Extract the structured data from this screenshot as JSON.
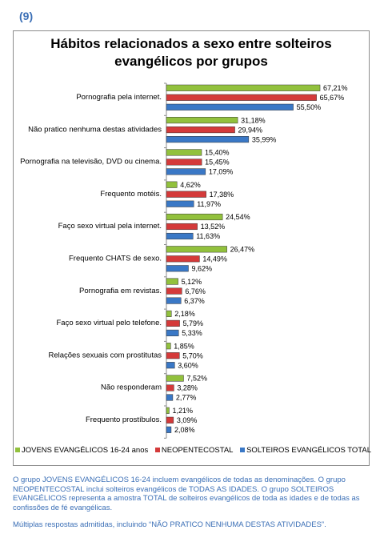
{
  "figure_number": "(9)",
  "legend": [
    {
      "label": "JOVENS EVANGÉLICOS 16-24 anos",
      "color": "#92c13d"
    },
    {
      "label": "NEOPENTECOSTAL",
      "color": "#d43a3a"
    },
    {
      "label": "SOLTEIROS EVANGÉLICOS TOTAL",
      "color": "#3a78c6"
    }
  ],
  "caption": {
    "paragraph1": "O grupo JOVENS EVANGÉLICOS 16-24 incluem evangélicos de todas as denominações. O grupo NEOPENTECOSTAL inclui solteiros evangélicos de TODAS AS IDADES. O grupo SOLTEIROS EVANGÉLICOS representa a amostra TOTAL de solteiros evangélicos de toda as idades e de todas as confissões de fé evangélicas.",
    "paragraph2": "Múltiplas respostas admitidas, incluindo “NÃO PRATICO NENHUMA DESTAS ATIVIDADES”."
  },
  "chart_data": {
    "type": "bar",
    "orientation": "horizontal",
    "title": "Hábitos relacionados a sexo entre solteiros evangélicos por grupos",
    "categories": [
      "Pornografia pela internet.",
      "Não pratico nenhuma destas atividades",
      "Pornografia na televisão, DVD ou cinema.",
      "Frequento motéis.",
      "Faço sexo virtual pela internet.",
      "Frequento CHATS de sexo.",
      "Pornografia em revistas.",
      "Faço sexo virtual pelo telefone.",
      "Relações sexuais com prostitutas",
      "Não responderam",
      "Frequento prostíbulos."
    ],
    "series": [
      {
        "name": "JOVENS EVANGÉLICOS 16-24 anos",
        "color": "#92c13d",
        "values": [
          67.21,
          31.18,
          15.4,
          4.62,
          24.54,
          26.47,
          5.12,
          2.18,
          1.85,
          7.52,
          1.21
        ],
        "labels": [
          "67,21%",
          "31,18%",
          "15,40%",
          "4,62%",
          "24,54%",
          "26,47%",
          "5,12%",
          "2,18%",
          "1,85%",
          "7,52%",
          "1,21%"
        ]
      },
      {
        "name": "NEOPENTECOSTAL",
        "color": "#d43a3a",
        "values": [
          65.67,
          29.94,
          15.45,
          17.38,
          13.52,
          14.49,
          6.76,
          5.79,
          5.7,
          3.28,
          3.09
        ],
        "labels": [
          "65,67%",
          "29,94%",
          "15,45%",
          "17,38%",
          "13,52%",
          "14,49%",
          "6,76%",
          "5,79%",
          "5,70%",
          "3,28%",
          "3,09%"
        ]
      },
      {
        "name": "SOLTEIROS EVANGÉLICOS TOTAL",
        "color": "#3a78c6",
        "values": [
          55.5,
          35.99,
          17.09,
          11.97,
          11.63,
          9.62,
          6.37,
          5.33,
          3.6,
          2.77,
          2.08
        ],
        "labels": [
          "55,50%",
          "35,99%",
          "17,09%",
          "11,97%",
          "11,63%",
          "9,62%",
          "6,37%",
          "5,33%",
          "3,60%",
          "2,77%",
          "2,08%"
        ]
      }
    ],
    "grid": false,
    "legend_position": "bottom"
  }
}
